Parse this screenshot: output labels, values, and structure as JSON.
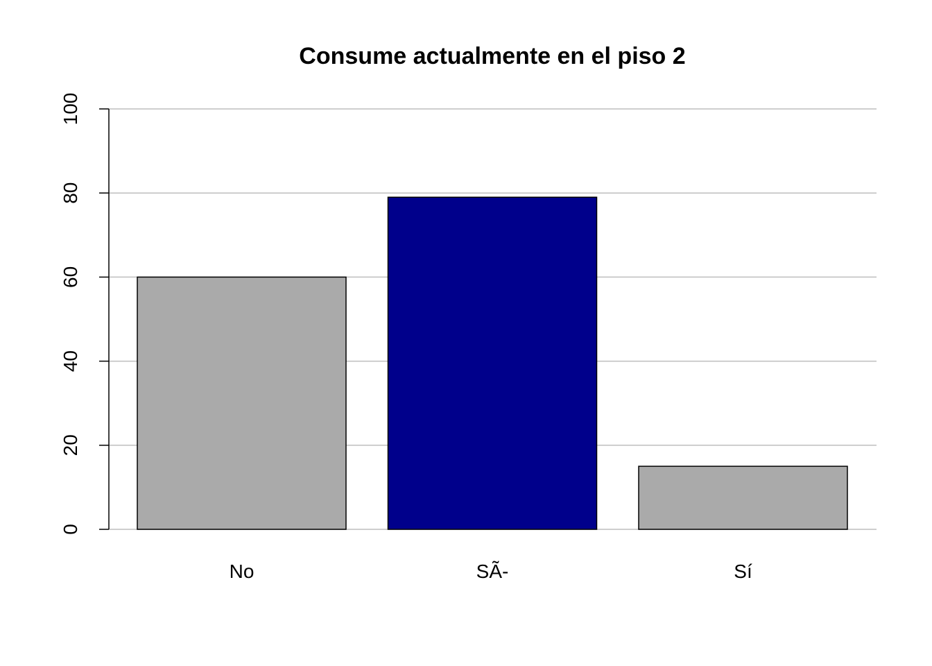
{
  "chart_data": {
    "type": "bar",
    "title": "Consume actualmente en el piso 2",
    "xlabel": "",
    "ylabel": "",
    "categories": [
      "No",
      "SÃ-",
      "Sí"
    ],
    "values": [
      60,
      79,
      15
    ],
    "colors": [
      "#aaaaaa",
      "#00008b",
      "#aaaaaa"
    ],
    "ylim": [
      0,
      100
    ],
    "yticks": [
      0,
      20,
      40,
      60,
      80,
      100
    ],
    "grid": true,
    "legend": "none"
  }
}
